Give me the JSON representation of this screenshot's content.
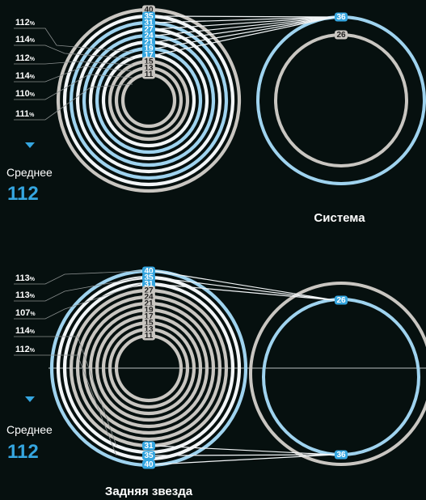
{
  "colors": {
    "background": "#06100f",
    "ring_grey": "#c9c6c1",
    "ring_white": "#f2f5f7",
    "ring_blue": "#9fd3ef",
    "accent_blue": "#35a6e0",
    "leader": "#8a8f8f"
  },
  "icons": [
    "triangle-down-icon"
  ],
  "sections": [
    {
      "title": "Система",
      "average_label": "Среднее",
      "average_value": "112",
      "percent_suffix": "%",
      "chainring_labels": [
        "40",
        "35",
        "31",
        "27",
        "24",
        "21",
        "19",
        "17",
        "15",
        "13",
        "11"
      ],
      "chainring_highlighted": [
        "35",
        "31",
        "27",
        "24",
        "21",
        "19",
        "17"
      ],
      "cassette_labels": [
        "36",
        "26"
      ],
      "cassette_highlighted": [
        "36"
      ],
      "percentages": [
        "112",
        "114",
        "112",
        "114",
        "110",
        "111"
      ]
    },
    {
      "title": "Задняя звезда",
      "average_label": "Среднее",
      "average_value": "112",
      "percent_suffix": "%",
      "chainring_labels": [
        "40",
        "35",
        "31",
        "27",
        "24",
        "21",
        "19",
        "17",
        "15",
        "13",
        "11"
      ],
      "chainring_highlighted": [
        "40",
        "35",
        "31"
      ],
      "bottom_labels": [
        "31",
        "35",
        "40"
      ],
      "cassette_labels": [
        "26",
        "36"
      ],
      "cassette_highlighted": [
        "26",
        "36"
      ],
      "percentages": [
        "113",
        "113",
        "107",
        "114",
        "112"
      ]
    }
  ]
}
